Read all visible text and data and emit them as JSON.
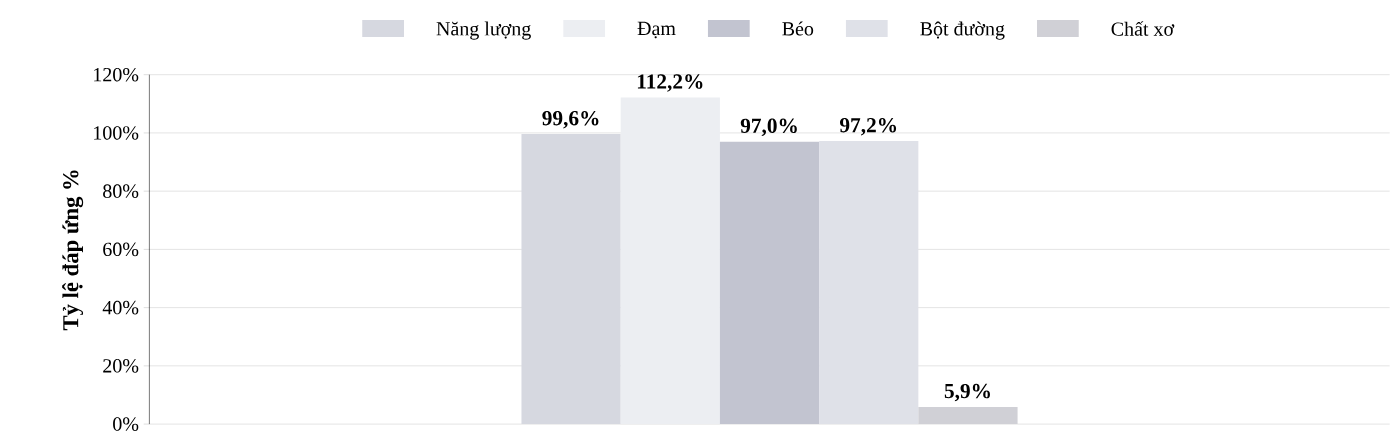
{
  "chart_data": {
    "type": "bar",
    "ylabel": "Tỷ lệ đáp ứng %",
    "categories": [
      null
    ],
    "series": [
      {
        "name": "Năng lượng",
        "color": "#d6d8e0",
        "values": [
          99.6
        ],
        "value_labels": [
          "99,6%"
        ]
      },
      {
        "name": "Đạm",
        "color": "#eceef2",
        "values": [
          112.2
        ],
        "value_labels": [
          "112,2%"
        ]
      },
      {
        "name": "Béo",
        "color": "#c2c4d0",
        "values": [
          97.0
        ],
        "value_labels": [
          "97,0%"
        ]
      },
      {
        "name": "Bột đường",
        "color": "#dfe1e8",
        "values": [
          97.2
        ],
        "value_labels": [
          "97,2%"
        ]
      },
      {
        "name": "Chất xơ",
        "color": "#d0d0d6",
        "values": [
          5.9
        ],
        "value_labels": [
          "5,9%"
        ]
      }
    ],
    "ylim": [
      0,
      120
    ],
    "yticks": [
      {
        "value": 0,
        "label": "0%"
      },
      {
        "value": 20,
        "label": "20%"
      },
      {
        "value": 40,
        "label": "40%"
      },
      {
        "value": 60,
        "label": "60%"
      },
      {
        "value": 80,
        "label": "80%"
      },
      {
        "value": 100,
        "label": "100%"
      },
      {
        "value": 120,
        "label": "120%"
      }
    ],
    "grid": "y",
    "legend": "top"
  }
}
